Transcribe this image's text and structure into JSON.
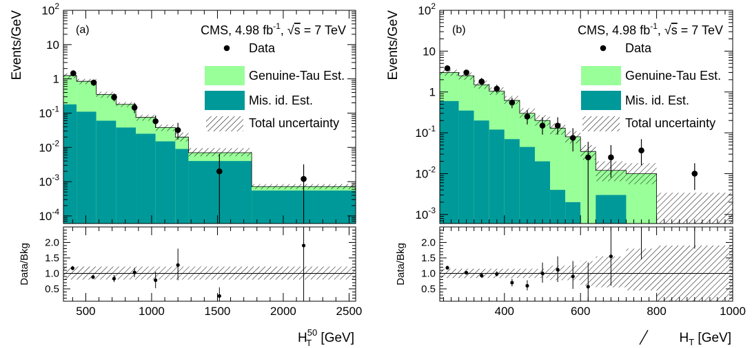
{
  "chart_data": [
    {
      "type": "bar",
      "panel_tag": "(a)",
      "title_prefix": "CMS, 4.98 fb",
      "title_exp": "-1",
      "title_sqrt": "√",
      "title_s": "s",
      "title_suffix": " = 7 TeV",
      "ylabel": "Events/GeV",
      "ratio_ylabel": "Data/Bkg",
      "xlabel_main": "H",
      "xlabel_sup": "50",
      "xlabel_sub": "T",
      "xlabel_unit": " [GeV]",
      "xlim": [
        330,
        2550
      ],
      "ylim": [
        6e-05,
        100
      ],
      "yscale": "log",
      "ratio_ylim": [
        0.1,
        2.5
      ],
      "x_ticks": [
        500,
        1000,
        1500,
        2000,
        2500
      ],
      "y_ticks": [
        {
          "v": 0.0001,
          "m": "10",
          "e": "-4"
        },
        {
          "v": 0.001,
          "m": "10",
          "e": "-3"
        },
        {
          "v": 0.01,
          "m": "10",
          "e": "-2"
        },
        {
          "v": 0.1,
          "m": "10",
          "e": "-1"
        },
        {
          "v": 1,
          "m": "1",
          "e": ""
        },
        {
          "v": 10,
          "m": "10",
          "e": ""
        },
        {
          "v": 100,
          "m": "10",
          "e": "2"
        }
      ],
      "ratio_ticks": [
        {
          "v": 0.5,
          "l": "0.5"
        },
        {
          "v": 1.0,
          "l": "1.0"
        },
        {
          "v": 1.5,
          "l": "1.5"
        },
        {
          "v": 2.0,
          "l": "2.0"
        }
      ],
      "bin_edges": [
        330,
        430,
        580,
        730,
        880,
        1030,
        1180,
        1280,
        1760,
        2550
      ],
      "misid": [
        0.18,
        0.11,
        0.06,
        0.038,
        0.025,
        0.015,
        0.009,
        0.004,
        0.00055
      ],
      "total": [
        1.25,
        0.85,
        0.35,
        0.18,
        0.075,
        0.038,
        0.02,
        0.007,
        0.00072
      ],
      "unc_up": [
        1.45,
        1.0,
        0.42,
        0.21,
        0.09,
        0.046,
        0.027,
        0.0095,
        0.00085
      ],
      "unc_dn": [
        1.05,
        0.7,
        0.28,
        0.15,
        0.06,
        0.03,
        0.015,
        0.0055,
        0.0006
      ],
      "data": [
        {
          "x": 405,
          "y": 1.45,
          "lo": 1.2,
          "hi": 1.7
        },
        {
          "x": 560,
          "y": 0.78,
          "lo": 0.62,
          "hi": 0.95
        },
        {
          "x": 715,
          "y": 0.29,
          "lo": 0.22,
          "hi": 0.38
        },
        {
          "x": 870,
          "y": 0.145,
          "lo": 0.1,
          "hi": 0.2
        },
        {
          "x": 1030,
          "y": 0.058,
          "lo": 0.037,
          "hi": 0.085
        },
        {
          "x": 1200,
          "y": 0.032,
          "lo": 0.017,
          "hi": 0.052
        },
        {
          "x": 1515,
          "y": 0.002,
          "lo": 6e-05,
          "hi": 0.0065
        },
        {
          "x": 2155,
          "y": 0.0012,
          "lo": 6e-05,
          "hi": 0.0032
        }
      ],
      "ratio": [
        {
          "x": 400,
          "y": 1.17,
          "lo": 1.1,
          "hi": 1.24
        },
        {
          "x": 555,
          "y": 0.88,
          "lo": 0.82,
          "hi": 0.95
        },
        {
          "x": 715,
          "y": 0.83,
          "lo": 0.72,
          "hi": 0.95
        },
        {
          "x": 870,
          "y": 1.03,
          "lo": 0.88,
          "hi": 1.18
        },
        {
          "x": 1030,
          "y": 0.78,
          "lo": 0.52,
          "hi": 1.05
        },
        {
          "x": 1200,
          "y": 1.27,
          "lo": 0.78,
          "hi": 1.8
        },
        {
          "x": 1515,
          "y": 0.27,
          "lo": 0.1,
          "hi": 0.55
        },
        {
          "x": 2155,
          "y": 1.9,
          "lo": 0.1,
          "hi": 2.5
        }
      ],
      "ratio_unc": [
        {
          "x0": 330,
          "x1": 2550,
          "lo": 0.8,
          "hi": 1.22
        }
      ],
      "legend": [
        {
          "label": "Data",
          "kind": "marker"
        },
        {
          "label": "Genuine-Tau Est.",
          "kind": "fill",
          "color": "#99ff99"
        },
        {
          "label": "Mis. id. Est.",
          "kind": "fill",
          "color": "#009999"
        },
        {
          "label": "Total uncertainty",
          "kind": "hatch"
        }
      ],
      "colors": {
        "genuine": "#99ff99",
        "misid": "#009999"
      }
    },
    {
      "type": "bar",
      "panel_tag": "(b)",
      "title_prefix": "CMS, 4.98 fb",
      "title_exp": "-1",
      "title_sqrt": "√",
      "title_s": "s",
      "title_suffix": " = 7 TeV",
      "ylabel": "Events/GeV",
      "ratio_ylabel": "Data/Bkg",
      "xlabel_main": "H",
      "xlabel_sup": "",
      "xlabel_sub": "T",
      "xlabel_unit": " [GeV]",
      "xlabel_slash": true,
      "xlim": [
        230,
        1000
      ],
      "ylim": [
        0.0006,
        100
      ],
      "yscale": "log",
      "ratio_ylim": [
        0.1,
        2.5
      ],
      "x_ticks": [
        400,
        600,
        800,
        1000
      ],
      "y_ticks": [
        {
          "v": 0.001,
          "m": "10",
          "e": "-3"
        },
        {
          "v": 0.01,
          "m": "10",
          "e": "-2"
        },
        {
          "v": 0.1,
          "m": "10",
          "e": "-1"
        },
        {
          "v": 1,
          "m": "1",
          "e": ""
        },
        {
          "v": 10,
          "m": "10",
          "e": ""
        },
        {
          "v": 100,
          "m": "10",
          "e": "2"
        }
      ],
      "ratio_ticks": [
        {
          "v": 0.5,
          "l": "0.5"
        },
        {
          "v": 1.0,
          "l": "1.0"
        },
        {
          "v": 1.5,
          "l": "1.5"
        },
        {
          "v": 2.0,
          "l": "2.0"
        }
      ],
      "bin_edges": [
        230,
        280,
        320,
        360,
        400,
        440,
        480,
        520,
        560,
        600,
        640,
        720,
        800,
        1000
      ],
      "misid": [
        0.6,
        0.35,
        0.2,
        0.12,
        0.07,
        0.045,
        0.02,
        0.004,
        0.002,
        0.0006,
        0.003,
        0.0006,
        0.0006
      ],
      "total": [
        3.0,
        2.5,
        1.5,
        1.05,
        0.62,
        0.3,
        0.2,
        0.13,
        0.08,
        0.035,
        0.012,
        0.01,
        0.0006
      ],
      "unc_up": [
        3.5,
        3.0,
        1.9,
        1.3,
        0.8,
        0.4,
        0.27,
        0.17,
        0.11,
        0.05,
        0.02,
        0.018,
        0.0034
      ],
      "unc_dn": [
        2.5,
        2.0,
        1.2,
        0.85,
        0.5,
        0.22,
        0.15,
        0.09,
        0.055,
        0.022,
        0.0065,
        0.0055,
        0.0006
      ],
      "data": [
        {
          "x": 250,
          "y": 3.8,
          "lo": 3.2,
          "hi": 4.5
        },
        {
          "x": 300,
          "y": 3.0,
          "lo": 2.5,
          "hi": 3.5
        },
        {
          "x": 340,
          "y": 1.8,
          "lo": 1.5,
          "hi": 2.2
        },
        {
          "x": 380,
          "y": 1.2,
          "lo": 0.95,
          "hi": 1.5
        },
        {
          "x": 420,
          "y": 0.55,
          "lo": 0.4,
          "hi": 0.72
        },
        {
          "x": 460,
          "y": 0.25,
          "lo": 0.16,
          "hi": 0.36
        },
        {
          "x": 500,
          "y": 0.15,
          "lo": 0.09,
          "hi": 0.24
        },
        {
          "x": 540,
          "y": 0.15,
          "lo": 0.09,
          "hi": 0.24
        },
        {
          "x": 580,
          "y": 0.075,
          "lo": 0.035,
          "hi": 0.13
        },
        {
          "x": 620,
          "y": 0.025,
          "lo": 0.0006,
          "hi": 0.06
        },
        {
          "x": 680,
          "y": 0.025,
          "lo": 0.008,
          "hi": 0.05
        },
        {
          "x": 760,
          "y": 0.037,
          "lo": 0.016,
          "hi": 0.07
        },
        {
          "x": 900,
          "y": 0.01,
          "lo": 0.004,
          "hi": 0.018
        }
      ],
      "ratio": [
        {
          "x": 250,
          "y": 1.18,
          "lo": 1.12,
          "hi": 1.25
        },
        {
          "x": 300,
          "y": 1.02,
          "lo": 0.97,
          "hi": 1.08
        },
        {
          "x": 340,
          "y": 0.93,
          "lo": 0.86,
          "hi": 1.0
        },
        {
          "x": 380,
          "y": 0.98,
          "lo": 0.9,
          "hi": 1.07
        },
        {
          "x": 420,
          "y": 0.7,
          "lo": 0.58,
          "hi": 0.82
        },
        {
          "x": 460,
          "y": 0.6,
          "lo": 0.45,
          "hi": 0.78
        },
        {
          "x": 500,
          "y": 1.0,
          "lo": 0.7,
          "hi": 1.35
        },
        {
          "x": 540,
          "y": 1.12,
          "lo": 0.72,
          "hi": 1.55
        },
        {
          "x": 580,
          "y": 0.9,
          "lo": 0.5,
          "hi": 1.4
        },
        {
          "x": 620,
          "y": 0.57,
          "lo": 0.1,
          "hi": 1.35
        },
        {
          "x": 680,
          "y": 1.55,
          "lo": 0.6,
          "hi": 2.5
        },
        {
          "x": 760,
          "y": 3.0,
          "lo": 1.45,
          "hi": 2.5
        },
        {
          "x": 900,
          "y": 3.0,
          "lo": 1.8,
          "hi": 2.5
        }
      ],
      "ratio_unc": [
        {
          "x0": 230,
          "x1": 520,
          "lo": 0.85,
          "hi": 1.15
        },
        {
          "x0": 520,
          "x1": 600,
          "lo": 0.78,
          "hi": 1.25
        },
        {
          "x0": 600,
          "x1": 640,
          "lo": 0.6,
          "hi": 1.4
        },
        {
          "x0": 640,
          "x1": 720,
          "lo": 0.55,
          "hi": 1.55
        },
        {
          "x0": 720,
          "x1": 800,
          "lo": 0.45,
          "hi": 1.8
        },
        {
          "x0": 800,
          "x1": 1000,
          "lo": 0.1,
          "hi": 1.9
        }
      ],
      "legend": [
        {
          "label": "Data",
          "kind": "marker"
        },
        {
          "label": "Genuine-Tau Est.",
          "kind": "fill",
          "color": "#99ff99"
        },
        {
          "label": "Mis. id. Est.",
          "kind": "fill",
          "color": "#009999"
        },
        {
          "label": "Total uncertainty",
          "kind": "hatch"
        }
      ],
      "colors": {
        "genuine": "#99ff99",
        "misid": "#009999"
      }
    }
  ]
}
